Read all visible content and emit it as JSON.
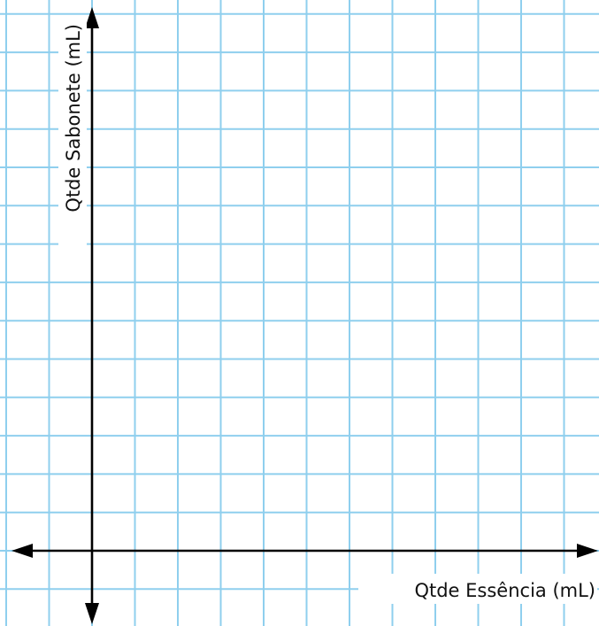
{
  "chart_data": {
    "type": "scatter",
    "title": "",
    "xlabel": "Qtde Essência (mL)",
    "ylabel": "Qtde Sabonete (mL)",
    "series": [],
    "grid": true,
    "colors": {
      "grid": "#8fcfee",
      "axes": "#000000",
      "background": "#ffffff"
    }
  }
}
